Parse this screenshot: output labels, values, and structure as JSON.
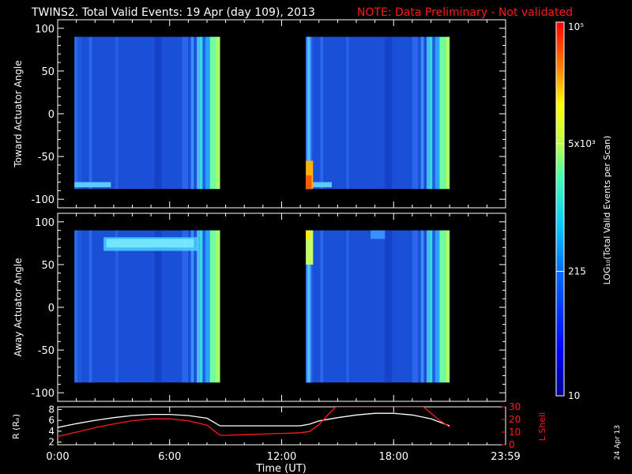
{
  "header": {
    "title": "TWINS2. Total Valid Events: 19 Apr (day 109), 2013",
    "note": "NOTE: Data Preliminary - Not validated",
    "note_color": "#ff1a1a"
  },
  "footer": {
    "date_stamp": "24 Apr 13"
  },
  "chart_data": [
    {
      "type": "heatmap",
      "title": "",
      "ylabel": "Toward Actuator Angle",
      "ylim": [
        -110,
        110
      ],
      "yticks": [
        100,
        50,
        0,
        -50,
        -100
      ],
      "xlim": [
        0,
        24
      ],
      "segments": [
        {
          "t_start": 0.9,
          "t_end": 8.7,
          "angle_min": -88,
          "angle_max": 90
        },
        {
          "t_start": 13.3,
          "t_end": 21.0,
          "angle_min": -88,
          "angle_max": 90
        }
      ]
    },
    {
      "type": "heatmap",
      "title": "",
      "ylabel": "Away Actuator Angle",
      "ylim": [
        -110,
        110
      ],
      "yticks": [
        100,
        50,
        0,
        -50,
        -100
      ],
      "xlim": [
        0,
        24
      ],
      "segments": [
        {
          "t_start": 0.9,
          "t_end": 8.7,
          "angle_min": -88,
          "angle_max": 90
        },
        {
          "t_start": 13.3,
          "t_end": 21.0,
          "angle_min": -88,
          "angle_max": 90
        }
      ]
    },
    {
      "type": "line",
      "xlabel": "Time (UT)",
      "ylabel_left": "R (Rₑ)",
      "ylabel_right": "L Shell",
      "xlim": [
        0,
        24
      ],
      "xticks": [
        {
          "t": 0,
          "label": "0:00"
        },
        {
          "t": 6,
          "label": "6:00"
        },
        {
          "t": 12,
          "label": "12:00"
        },
        {
          "t": 18,
          "label": "18:00"
        },
        {
          "t": 24,
          "label": "23:59"
        }
      ],
      "ylim_left": [
        1.5,
        8.5
      ],
      "yticks_left": [
        2,
        4,
        6,
        8
      ],
      "ylim_right": [
        0,
        30
      ],
      "yticks_right": [
        0,
        10,
        20,
        30
      ],
      "series": [
        {
          "axis": "left",
          "color": "#ffffff",
          "x": [
            0,
            1,
            2,
            3,
            4,
            5,
            6,
            7,
            8,
            8.7,
            9,
            10,
            11,
            12,
            13,
            13.5,
            14,
            15,
            16,
            17,
            18,
            19,
            20,
            21
          ],
          "y": [
            4.7,
            5.4,
            6.0,
            6.5,
            6.9,
            7.1,
            7.1,
            6.9,
            6.4,
            5.0,
            5.0,
            5.0,
            5.0,
            5.0,
            5.0,
            5.3,
            5.9,
            6.5,
            7.0,
            7.3,
            7.3,
            7.0,
            6.3,
            5.0
          ]
        },
        {
          "axis": "right",
          "color": "#ff1a1a",
          "x": [
            0,
            1,
            2,
            3,
            4,
            5,
            6,
            7,
            8,
            8.7,
            9,
            10,
            11,
            12,
            13,
            13.5,
            14,
            14.5,
            14.9,
            19.6,
            20,
            20.5,
            21
          ],
          "y": [
            6.5,
            10.0,
            13.5,
            16.5,
            19.0,
            20.5,
            20.5,
            19.0,
            15.5,
            7.5,
            7.5,
            8.0,
            8.5,
            9.0,
            9.5,
            10.5,
            16.0,
            24.0,
            30.0,
            30.0,
            25.0,
            19.0,
            14.0
          ]
        }
      ]
    }
  ],
  "colorbar": {
    "label": "LOG₁₀(Total Valid Events per Scan)",
    "scale": "log",
    "range": [
      10,
      100000
    ],
    "ticks": [
      {
        "value": 10,
        "label": "10"
      },
      {
        "value": 215,
        "label": "215"
      },
      {
        "value": 5000,
        "label": "5x10³"
      },
      {
        "value": 100000,
        "label": "10⁵"
      }
    ]
  }
}
